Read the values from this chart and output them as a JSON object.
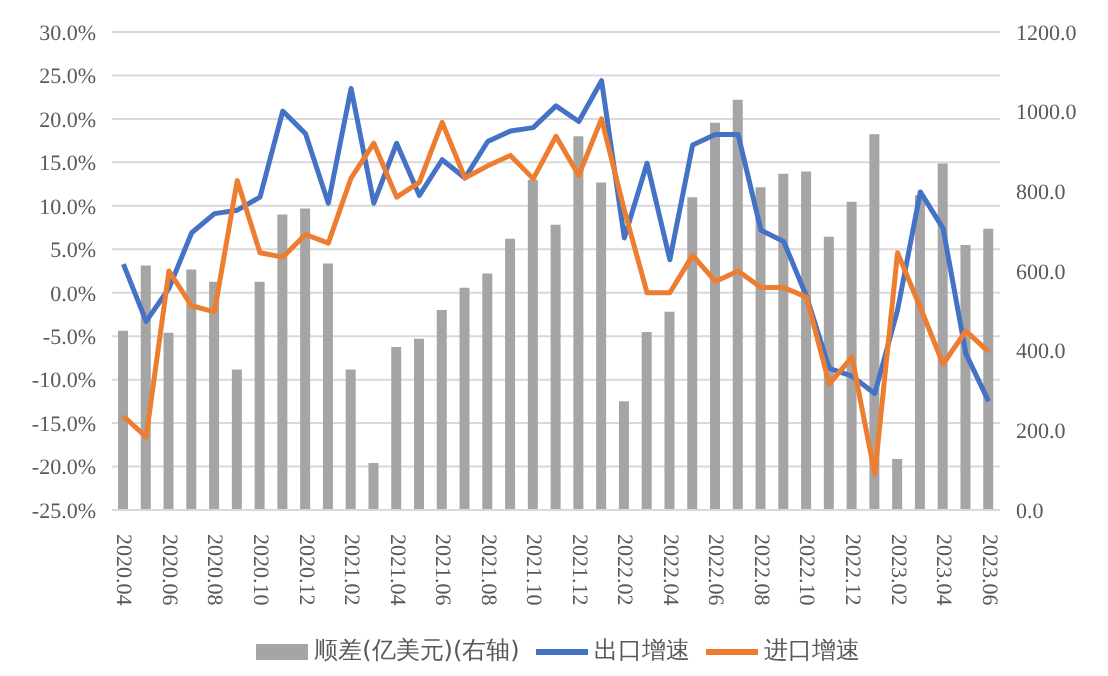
{
  "chart_data": {
    "type": "line",
    "categories": [
      "2020.04",
      null,
      "2020.06",
      null,
      "2020.08",
      null,
      "2020.10",
      null,
      "2020.12",
      null,
      "2021.02",
      null,
      "2021.04",
      null,
      "2021.06",
      null,
      "2021.08",
      null,
      "2021.10",
      null,
      "2021.12",
      null,
      "2022.02",
      null,
      "2022.04",
      null,
      "2022.06",
      null,
      "2022.08",
      null,
      "2022.10",
      null,
      "2022.12",
      null,
      "2023.02",
      null,
      "2023.04",
      null,
      "2023.06"
    ],
    "series": [
      {
        "name": "顺差(亿美元)(右轴)",
        "type": "bar",
        "axis": "y2",
        "color": "#a5a5a5",
        "values": [
          450,
          614,
          445,
          604,
          573,
          353,
          573,
          742,
          757,
          619,
          353,
          118,
          409,
          430,
          502,
          558,
          594,
          681,
          829,
          716,
          938,
          822,
          273,
          447,
          498,
          785,
          972,
          1030,
          810,
          844,
          850,
          686,
          774,
          943,
          128,
          790,
          870,
          665,
          706
        ]
      },
      {
        "name": "出口增速",
        "color": "#4472c4",
        "values": [
          3.3,
          -3.3,
          0.5,
          6.9,
          9.1,
          9.5,
          11.0,
          20.9,
          18.3,
          10.3,
          23.5,
          10.3,
          17.2,
          11.2,
          15.3,
          13.2,
          17.4,
          18.6,
          19.0,
          21.5,
          19.7,
          24.4,
          6.3,
          14.9,
          3.8,
          17.0,
          18.2,
          18.2,
          7.2,
          5.9,
          -0.4,
          -8.7,
          -9.6,
          -11.6,
          -2.0,
          11.6,
          7.4,
          -7.0,
          -12.5
        ]
      },
      {
        "name": "进口增速",
        "color": "#ed7d31",
        "values": [
          -14.2,
          -16.6,
          2.5,
          -1.5,
          -2.2,
          12.9,
          4.6,
          4.1,
          6.7,
          5.7,
          13.2,
          17.2,
          11.0,
          12.7,
          19.6,
          13.2,
          14.6,
          15.8,
          13.1,
          18.0,
          13.5,
          20.0,
          9.5,
          0.0,
          0.0,
          4.3,
          1.3,
          2.5,
          0.6,
          0.6,
          -0.5,
          -10.5,
          -7.4,
          -20.9,
          4.6,
          -1.7,
          -8.2,
          -4.4,
          -6.8
        ]
      }
    ],
    "ylim": [
      -25,
      30
    ],
    "yticks": [
      {
        "value": -25,
        "label": "-25.0%"
      },
      {
        "value": -20,
        "label": "-20.0%"
      },
      {
        "value": -15,
        "label": "-15.0%"
      },
      {
        "value": -10,
        "label": "-10.0%"
      },
      {
        "value": -5,
        "label": "-5.0%"
      },
      {
        "value": 0,
        "label": "0.0%"
      },
      {
        "value": 5,
        "label": "5.0%"
      },
      {
        "value": 10,
        "label": "10.0%"
      },
      {
        "value": 15,
        "label": "15.0%"
      },
      {
        "value": 20,
        "label": "20.0%"
      },
      {
        "value": 25,
        "label": "25.0%"
      },
      {
        "value": 30,
        "label": "30.0%"
      }
    ],
    "y2lim": [
      0,
      1200
    ],
    "y2ticks": [
      {
        "value": 0,
        "label": "0.0"
      },
      {
        "value": 200,
        "label": "200.0"
      },
      {
        "value": 400,
        "label": "400.0"
      },
      {
        "value": 600,
        "label": "600.0"
      },
      {
        "value": 800,
        "label": "800.0"
      },
      {
        "value": 1000,
        "label": "1000.0"
      },
      {
        "value": 1200,
        "label": "1200.0"
      }
    ],
    "grid": "y",
    "legend": "bottom",
    "marker": "none",
    "line_style": "solid"
  }
}
